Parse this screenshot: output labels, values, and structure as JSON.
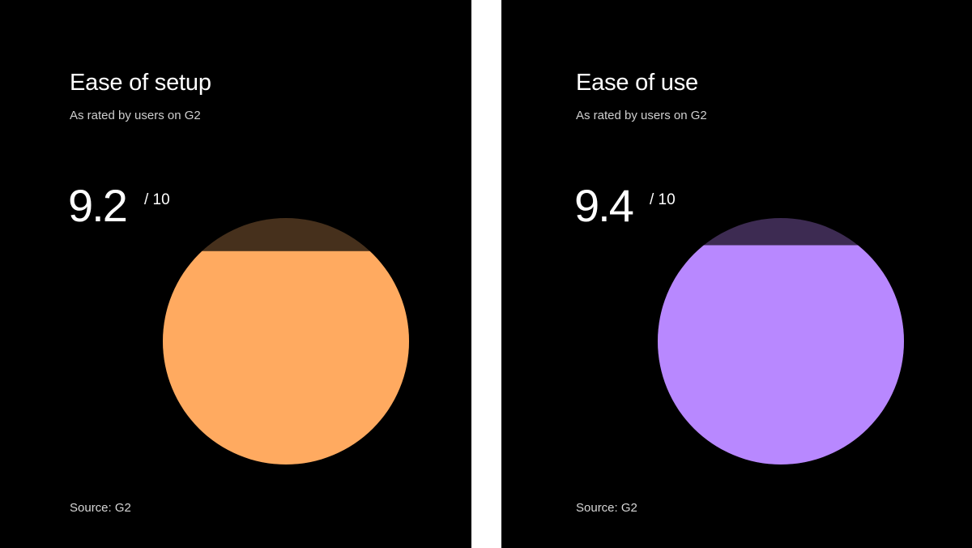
{
  "chart_data": [
    {
      "type": "pie",
      "title": "Ease of setup",
      "subtitle": "As rated by users on G2",
      "score": "9.2",
      "scale": "/ 10",
      "value": 9.2,
      "max": 10,
      "source": "Source: G2",
      "colors": {
        "fill": "#FFAA60",
        "track": "#46301C"
      }
    },
    {
      "type": "pie",
      "title": "Ease of use",
      "subtitle": "As rated by users on G2",
      "score": "9.4",
      "scale": "/ 10",
      "value": 9.4,
      "max": 10,
      "source": "Source: G2",
      "colors": {
        "fill": "#B888FF",
        "track": "#3D2B52"
      }
    }
  ]
}
